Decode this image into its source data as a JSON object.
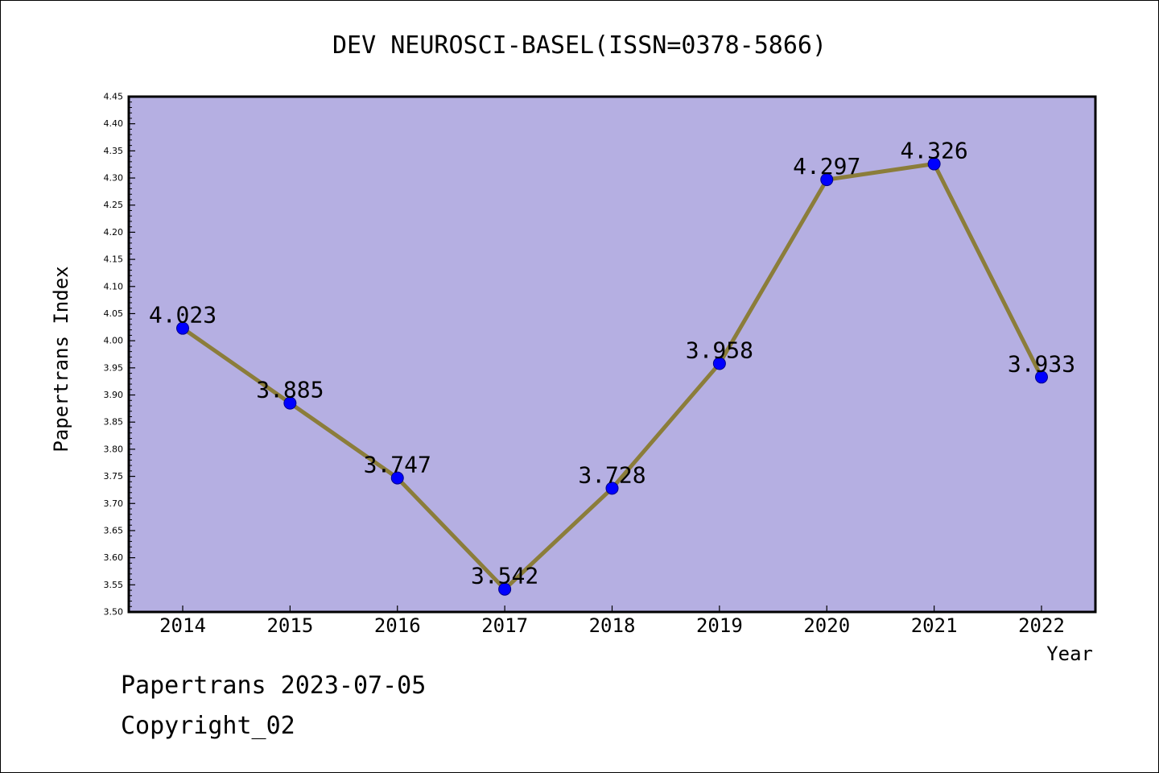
{
  "chart_data": {
    "type": "line",
    "title": "DEV NEUROSCI-BASEL(ISSN=0378-5866)",
    "xlabel": "Year",
    "ylabel": "Papertrans Index",
    "categories": [
      "2014",
      "2015",
      "2016",
      "2017",
      "2018",
      "2019",
      "2020",
      "2021",
      "2022"
    ],
    "values": [
      4.023,
      3.885,
      3.747,
      3.542,
      3.728,
      3.958,
      4.297,
      4.326,
      3.933
    ],
    "data_labels": [
      "4.023",
      "3.885",
      "3.747",
      "3.542",
      "3.728",
      "3.958",
      "4.297",
      "4.326",
      "3.933"
    ],
    "ylim": [
      3.5,
      4.45
    ],
    "ytick_step": 0.05,
    "ytick_labels": [
      "3.50",
      "3.55",
      "3.60",
      "3.65",
      "3.70",
      "3.75",
      "3.80",
      "3.85",
      "3.90",
      "3.95",
      "4.00",
      "4.05",
      "4.10",
      "4.15",
      "4.20",
      "4.25",
      "4.30",
      "4.35",
      "4.40",
      "4.45"
    ],
    "grid": false,
    "legend": "none",
    "colors": {
      "plot_background": "#b5afe2",
      "line": "#8b7d3a",
      "marker": "#0000ff",
      "frame": "#000000"
    }
  },
  "footer": {
    "line1": "Papertrans 2023-07-05",
    "line2": "Copyright_02"
  }
}
